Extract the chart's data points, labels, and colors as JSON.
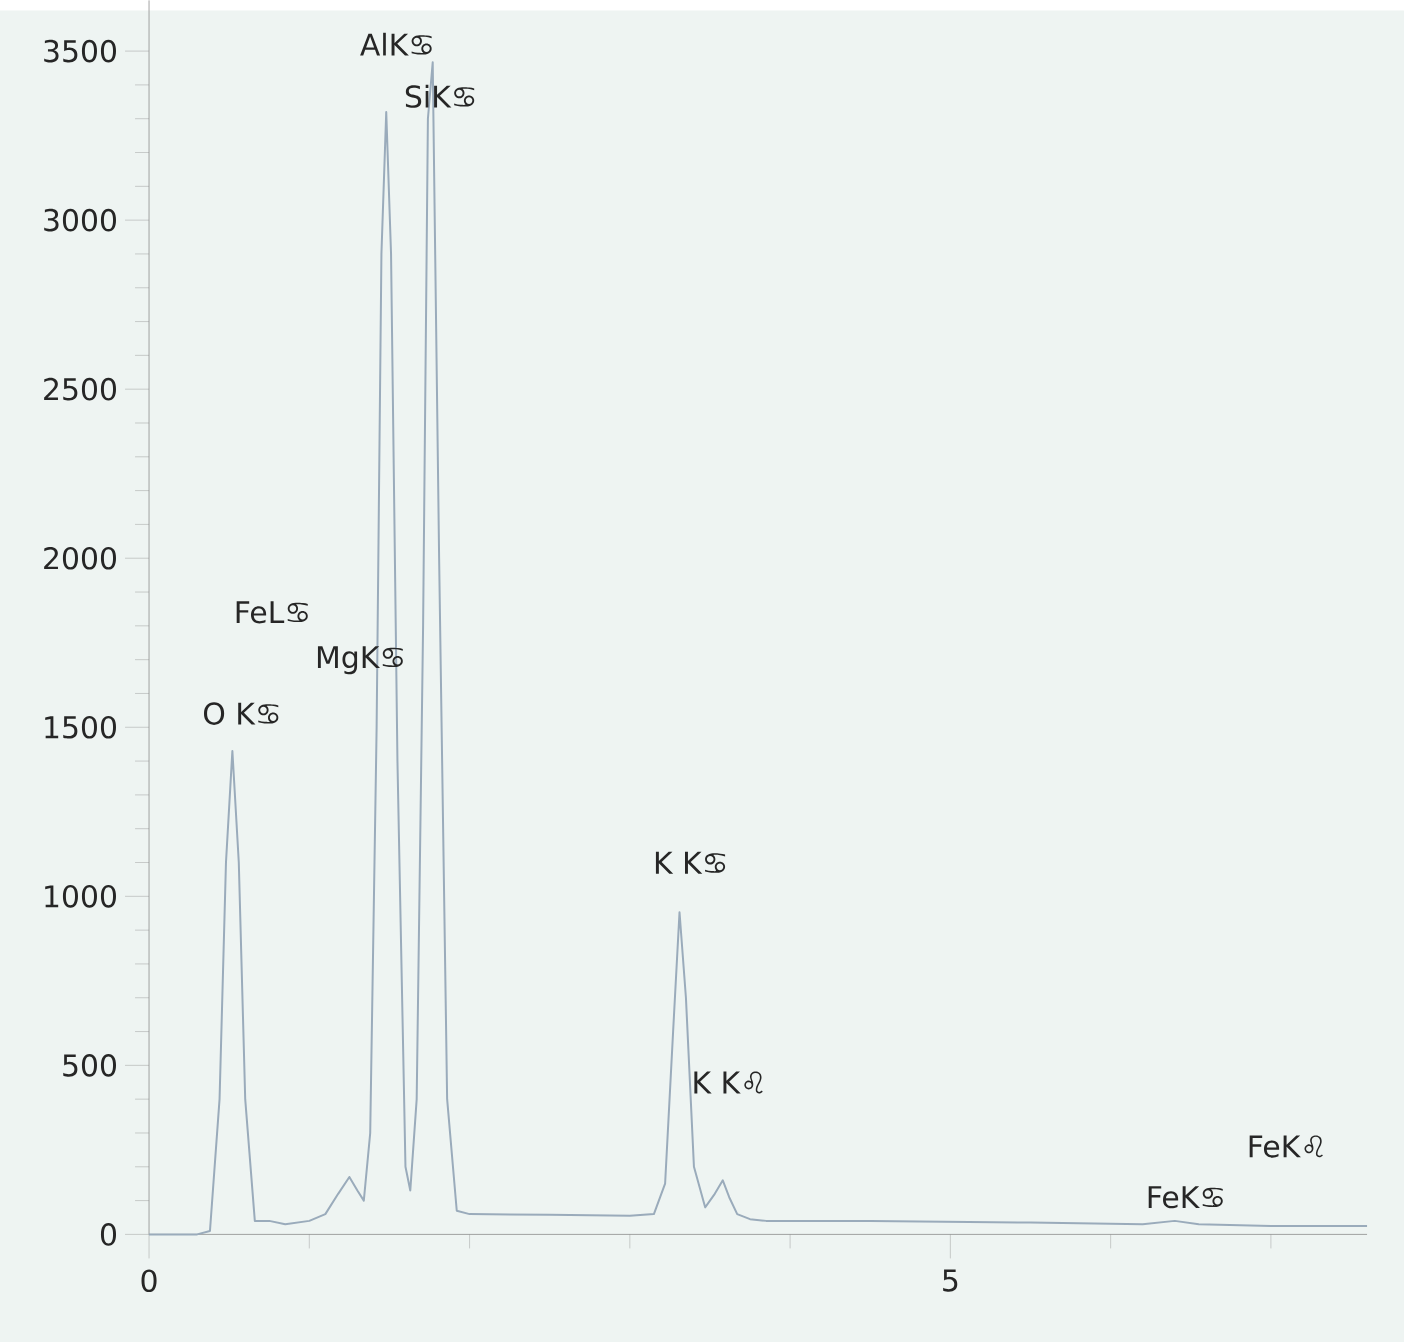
{
  "chart_data": {
    "type": "line",
    "color": "#9aabbb",
    "line_style": "solid",
    "x": [
      0,
      0.3,
      0.38,
      0.44,
      0.48,
      0.52,
      0.56,
      0.6,
      0.66,
      0.75,
      0.85,
      1.0,
      1.1,
      1.18,
      1.25,
      1.3,
      1.34,
      1.38,
      1.42,
      1.45,
      1.48,
      1.51,
      1.55,
      1.6,
      1.63,
      1.67,
      1.71,
      1.74,
      1.77,
      1.81,
      1.86,
      1.92,
      2.0,
      2.5,
      3.0,
      3.15,
      3.22,
      3.27,
      3.31,
      3.35,
      3.4,
      3.47,
      3.53,
      3.58,
      3.62,
      3.67,
      3.75,
      3.85,
      4.5,
      5.5,
      6.2,
      6.4,
      6.55,
      7.0,
      7.6
    ],
    "values": [
      0,
      0,
      10,
      400,
      1100,
      1430,
      1100,
      400,
      40,
      40,
      30,
      40,
      60,
      120,
      170,
      130,
      100,
      300,
      1500,
      2900,
      3320,
      2900,
      1400,
      200,
      130,
      400,
      1800,
      3300,
      3467,
      2000,
      400,
      70,
      60,
      58,
      55,
      60,
      150,
      600,
      953,
      700,
      200,
      80,
      120,
      160,
      110,
      60,
      45,
      40,
      40,
      35,
      30,
      40,
      30,
      25,
      25
    ],
    "xlim": [
      0,
      7.6
    ],
    "ylim": [
      0,
      3650
    ],
    "xticks": [
      0,
      {
        "value": 1,
        "label": null
      },
      {
        "value": 2,
        "label": null
      },
      {
        "value": 3,
        "label": null
      },
      {
        "value": 4,
        "label": null
      },
      5,
      {
        "value": 6,
        "label": null
      },
      {
        "value": 7,
        "label": null
      }
    ],
    "yticks": [
      0,
      {
        "value": 100,
        "label": null
      },
      {
        "value": 200,
        "label": null
      },
      {
        "value": 300,
        "label": null
      },
      {
        "value": 400,
        "label": null
      },
      500,
      {
        "value": 600,
        "label": null
      },
      {
        "value": 700,
        "label": null
      },
      {
        "value": 800,
        "label": null
      },
      {
        "value": 900,
        "label": null
      },
      1000,
      {
        "value": 1100,
        "label": null
      },
      {
        "value": 1200,
        "label": null
      },
      {
        "value": 1300,
        "label": null
      },
      {
        "value": 1400,
        "label": null
      },
      1500,
      {
        "value": 1600,
        "label": null
      },
      {
        "value": 1700,
        "label": null
      },
      {
        "value": 1800,
        "label": null
      },
      {
        "value": 1900,
        "label": null
      },
      2000,
      {
        "value": 2100,
        "label": null
      },
      {
        "value": 2200,
        "label": null
      },
      {
        "value": 2300,
        "label": null
      },
      {
        "value": 2400,
        "label": null
      },
      2500,
      {
        "value": 2600,
        "label": null
      },
      {
        "value": 2700,
        "label": null
      },
      {
        "value": 2800,
        "label": null
      },
      {
        "value": 2900,
        "label": null
      },
      3000,
      {
        "value": 3100,
        "label": null
      },
      {
        "value": 3200,
        "label": null
      },
      {
        "value": 3300,
        "label": null
      },
      {
        "value": 3400,
        "label": null
      },
      3500
    ],
    "annotations": [
      "AlK♋",
      "SiK♋",
      "FeL♋",
      "MgK♋",
      "O K♋",
      "K K♋",
      "K K♌",
      "FeK♌",
      "FeK♋"
    ]
  }
}
